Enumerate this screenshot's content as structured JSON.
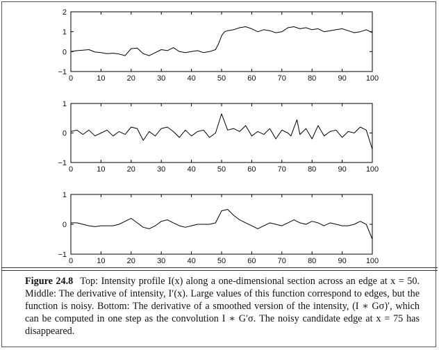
{
  "chart_data": [
    {
      "type": "line",
      "title": "",
      "xlabel": "",
      "ylabel": "",
      "xlim": [
        0,
        100
      ],
      "ylim": [
        -1,
        2
      ],
      "xticks": [
        "0",
        "10",
        "20",
        "30",
        "40",
        "50",
        "60",
        "70",
        "80",
        "90",
        "100"
      ],
      "yticks": [
        "−1",
        "0",
        "1",
        "2"
      ],
      "series": [
        {
          "x": [
            0,
            2,
            4,
            6,
            8,
            10,
            12,
            14,
            16,
            18,
            20,
            22,
            24,
            26,
            28,
            30,
            32,
            34,
            36,
            38,
            40,
            42,
            44,
            46,
            48,
            49,
            50,
            51,
            52,
            54,
            56,
            58,
            60,
            62,
            64,
            66,
            68,
            70,
            72,
            74,
            76,
            78,
            80,
            82,
            84,
            86,
            88,
            90,
            92,
            94,
            96,
            98,
            100
          ],
          "values": [
            0.0,
            0.05,
            0.07,
            0.1,
            -0.02,
            -0.05,
            -0.1,
            -0.08,
            -0.12,
            -0.2,
            0.15,
            0.18,
            -0.1,
            -0.2,
            -0.05,
            0.1,
            0.05,
            0.2,
            0.0,
            -0.05,
            0.0,
            0.05,
            -0.05,
            0.0,
            0.1,
            0.4,
            0.8,
            1.0,
            1.05,
            1.1,
            1.2,
            1.25,
            1.15,
            1.0,
            1.1,
            1.05,
            0.95,
            1.0,
            1.2,
            1.25,
            1.15,
            1.2,
            1.1,
            1.15,
            1.0,
            1.05,
            1.1,
            1.15,
            1.05,
            0.95,
            1.0,
            1.1,
            0.95
          ]
        }
      ]
    },
    {
      "type": "line",
      "title": "",
      "xlabel": "",
      "ylabel": "",
      "xlim": [
        0,
        100
      ],
      "ylim": [
        -1,
        1
      ],
      "xticks": [
        "0",
        "10",
        "20",
        "30",
        "40",
        "50",
        "60",
        "70",
        "80",
        "90",
        "100"
      ],
      "yticks": [
        "−1",
        "0",
        "1"
      ],
      "series": [
        {
          "x": [
            0,
            2,
            4,
            6,
            8,
            10,
            12,
            14,
            16,
            18,
            20,
            22,
            24,
            26,
            28,
            30,
            32,
            34,
            36,
            38,
            40,
            42,
            44,
            46,
            48,
            50,
            52,
            54,
            56,
            58,
            60,
            62,
            64,
            66,
            68,
            70,
            72,
            73,
            75,
            76,
            78,
            80,
            82,
            84,
            86,
            88,
            90,
            92,
            94,
            96,
            98,
            100
          ],
          "values": [
            0.05,
            0.1,
            -0.05,
            0.1,
            -0.1,
            0.0,
            0.1,
            -0.1,
            0.05,
            -0.05,
            0.2,
            0.15,
            -0.25,
            0.05,
            -0.1,
            0.15,
            0.2,
            0.05,
            -0.15,
            0.1,
            -0.1,
            0.05,
            0.1,
            -0.15,
            0.0,
            0.65,
            0.1,
            0.15,
            0.05,
            0.25,
            -0.1,
            0.05,
            -0.05,
            0.15,
            -0.2,
            0.1,
            0.0,
            -0.1,
            0.45,
            -0.05,
            0.15,
            -0.2,
            0.25,
            -0.1,
            0.05,
            0.1,
            -0.15,
            0.05,
            0.0,
            0.2,
            0.1,
            -0.55
          ]
        }
      ]
    },
    {
      "type": "line",
      "title": "",
      "xlabel": "",
      "ylabel": "",
      "xlim": [
        0,
        100
      ],
      "ylim": [
        -1,
        1
      ],
      "xticks": [
        "0",
        "10",
        "20",
        "30",
        "40",
        "50",
        "60",
        "70",
        "80",
        "90",
        "100"
      ],
      "yticks": [
        "−1",
        "0",
        "1"
      ],
      "series": [
        {
          "x": [
            0,
            2,
            4,
            6,
            8,
            10,
            12,
            14,
            16,
            18,
            20,
            22,
            24,
            26,
            28,
            30,
            32,
            34,
            36,
            38,
            40,
            42,
            44,
            46,
            48,
            50,
            52,
            54,
            56,
            58,
            60,
            62,
            64,
            66,
            68,
            70,
            72,
            74,
            76,
            78,
            80,
            82,
            84,
            86,
            88,
            90,
            92,
            94,
            96,
            98,
            100
          ],
          "values": [
            0.05,
            0.05,
            0.0,
            -0.05,
            -0.08,
            -0.05,
            -0.05,
            -0.05,
            0.0,
            0.1,
            0.2,
            0.05,
            -0.1,
            -0.15,
            -0.05,
            0.1,
            0.15,
            0.05,
            -0.05,
            -0.1,
            -0.05,
            0.0,
            0.0,
            0.0,
            0.05,
            0.45,
            0.5,
            0.3,
            0.15,
            0.05,
            -0.05,
            -0.15,
            -0.05,
            0.05,
            0.0,
            -0.05,
            0.05,
            0.15,
            0.05,
            0.0,
            0.1,
            0.05,
            -0.05,
            0.05,
            0.0,
            -0.05,
            -0.05,
            0.0,
            0.1,
            0.0,
            -0.5
          ]
        }
      ]
    }
  ],
  "caption": {
    "label": "Figure 24.8",
    "text": "Top: Intensity profile I(x) along a one-dimensional section across an edge at x = 50. Middle: The derivative of intensity, I′(x). Large values of this function correspond to edges, but the function is noisy. Bottom: The derivative of a smoothed version of the intensity, (I ∗ Gσ)′, which can be computed in one step as the convolution I ∗ G′σ. The noisy candidate edge at x = 75 has disappeared."
  },
  "colors": {
    "line": "#000000",
    "frame": "#555555"
  }
}
